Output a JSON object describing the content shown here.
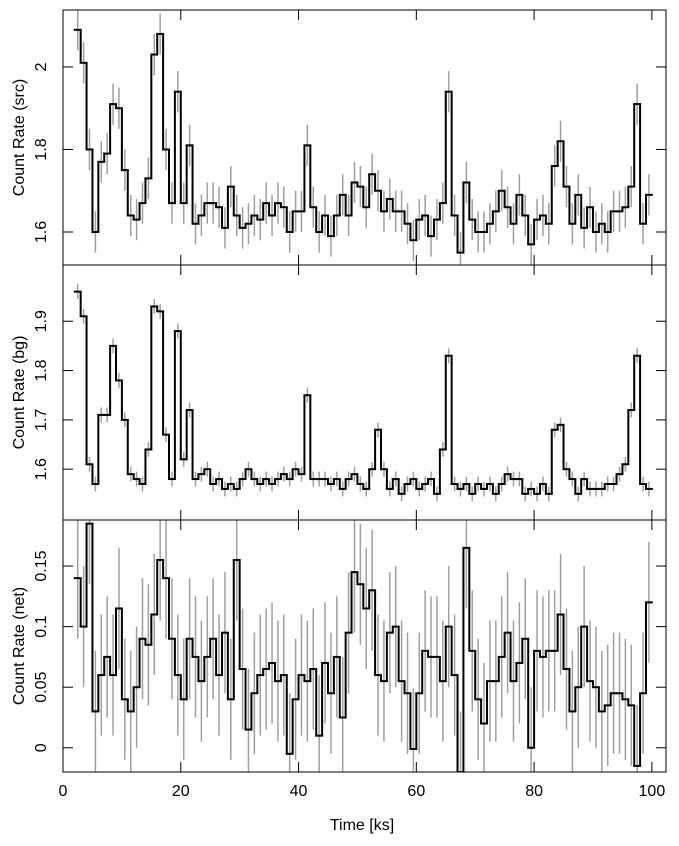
{
  "chart_data": {
    "type": "step",
    "xlabel": "Time [ks]",
    "xlim": [
      0,
      102.4
    ],
    "xticks": [
      0,
      20,
      40,
      60,
      80,
      100
    ],
    "line_color": "#000000",
    "error_color": "#a0a0a0",
    "bins": [
      2,
      3,
      4,
      5,
      6,
      7,
      8,
      9,
      10,
      11,
      12,
      13,
      14,
      15,
      16,
      17,
      18,
      19,
      20,
      21,
      22,
      23,
      24,
      25,
      26,
      27,
      28,
      29,
      30,
      31,
      32,
      33,
      34,
      35,
      36,
      37,
      38,
      39,
      40,
      41,
      42,
      43,
      44,
      45,
      46,
      47,
      48,
      49,
      50,
      51,
      52,
      53,
      54,
      55,
      56,
      57,
      58,
      59,
      60,
      61,
      62,
      63,
      64,
      65,
      66,
      67,
      68,
      69,
      70,
      71,
      72,
      73,
      74,
      75,
      76,
      77,
      78,
      79,
      80,
      81,
      82,
      83,
      84,
      85,
      86,
      87,
      88,
      89,
      90,
      91,
      92,
      93,
      94,
      95,
      96,
      97,
      98,
      99,
      100
    ],
    "panels": [
      {
        "ylabel": "Count Rate (src)",
        "ylim": [
          1.52,
          2.138
        ],
        "yticks": [
          1.6,
          1.8,
          2
        ],
        "error": 0.05,
        "values": [
          2.09,
          2.01,
          1.8,
          1.6,
          1.77,
          1.79,
          1.91,
          1.9,
          1.75,
          1.64,
          1.63,
          1.67,
          1.73,
          2.03,
          2.08,
          1.8,
          1.67,
          1.94,
          1.67,
          1.81,
          1.62,
          1.64,
          1.67,
          1.67,
          1.66,
          1.61,
          1.71,
          1.64,
          1.61,
          1.62,
          1.64,
          1.63,
          1.67,
          1.64,
          1.67,
          1.66,
          1.6,
          1.65,
          1.65,
          1.81,
          1.66,
          1.6,
          1.64,
          1.59,
          1.64,
          1.69,
          1.64,
          1.72,
          1.71,
          1.66,
          1.74,
          1.7,
          1.65,
          1.68,
          1.65,
          1.65,
          1.62,
          1.58,
          1.63,
          1.64,
          1.59,
          1.63,
          1.67,
          1.94,
          1.64,
          1.55,
          1.72,
          1.63,
          1.6,
          1.6,
          1.62,
          1.65,
          1.7,
          1.66,
          1.62,
          1.69,
          1.64,
          1.57,
          1.63,
          1.64,
          1.62,
          1.76,
          1.82,
          1.71,
          1.62,
          1.69,
          1.61,
          1.66,
          1.6,
          1.62,
          1.6,
          1.65,
          1.65,
          1.66,
          1.71,
          1.91,
          1.62,
          1.69
        ]
      },
      {
        "ylabel": "Count Rate (bg)",
        "ylim": [
          1.497,
          2.014
        ],
        "yticks": [
          1.6,
          1.7,
          1.8,
          1.9
        ],
        "error": 0.015,
        "values": [
          1.96,
          1.91,
          1.61,
          1.57,
          1.71,
          1.71,
          1.85,
          1.78,
          1.7,
          1.59,
          1.58,
          1.57,
          1.64,
          1.93,
          1.92,
          1.67,
          1.58,
          1.88,
          1.62,
          1.72,
          1.58,
          1.59,
          1.6,
          1.57,
          1.58,
          1.56,
          1.57,
          1.56,
          1.58,
          1.6,
          1.58,
          1.57,
          1.58,
          1.57,
          1.58,
          1.59,
          1.58,
          1.6,
          1.59,
          1.75,
          1.58,
          1.58,
          1.58,
          1.57,
          1.58,
          1.56,
          1.58,
          1.59,
          1.57,
          1.56,
          1.6,
          1.68,
          1.6,
          1.56,
          1.58,
          1.55,
          1.57,
          1.58,
          1.56,
          1.57,
          1.58,
          1.55,
          1.64,
          1.83,
          1.57,
          1.56,
          1.57,
          1.55,
          1.57,
          1.56,
          1.57,
          1.55,
          1.57,
          1.59,
          1.58,
          1.58,
          1.55,
          1.56,
          1.55,
          1.57,
          1.55,
          1.68,
          1.69,
          1.6,
          1.58,
          1.55,
          1.58,
          1.56,
          1.56,
          1.56,
          1.57,
          1.57,
          1.59,
          1.61,
          1.72,
          1.83,
          1.57,
          1.56
        ]
      },
      {
        "ylabel": "Count Rate (net)",
        "ylim": [
          -0.02,
          0.188
        ],
        "yticks": [
          0,
          0.05,
          0.1,
          0.15
        ],
        "error": 0.05,
        "values": [
          0.14,
          0.1,
          0.185,
          0.03,
          0.06,
          0.075,
          0.06,
          0.115,
          0.04,
          0.03,
          0.05,
          0.09,
          0.085,
          0.11,
          0.155,
          0.14,
          0.09,
          0.06,
          0.04,
          0.09,
          0.075,
          0.055,
          0.075,
          0.09,
          0.06,
          0.095,
          0.04,
          0.155,
          0.065,
          0.015,
          0.045,
          0.06,
          0.065,
          0.07,
          0.055,
          0.06,
          -0.005,
          0.04,
          0.06,
          0.055,
          0.065,
          0.01,
          0.07,
          0.045,
          0.075,
          0.025,
          0.095,
          0.145,
          0.135,
          0.115,
          0.13,
          0.06,
          0.055,
          0.095,
          0.1,
          0.055,
          0.045,
          -0.001,
          0.045,
          0.08,
          0.075,
          0.075,
          0.055,
          0.1,
          0.06,
          -0.02,
          0.165,
          0.08,
          0.04,
          0.02,
          0.055,
          0.055,
          0.075,
          0.095,
          0.055,
          0.07,
          0.09,
          0,
          0.08,
          0.075,
          0.08,
          0.08,
          0.11,
          0.065,
          0.03,
          0.05,
          0.1,
          0.055,
          0.05,
          0.03,
          0.035,
          0.045,
          0.045,
          0.04,
          0.035,
          -0.015,
          0.045,
          0.12
        ]
      }
    ]
  }
}
